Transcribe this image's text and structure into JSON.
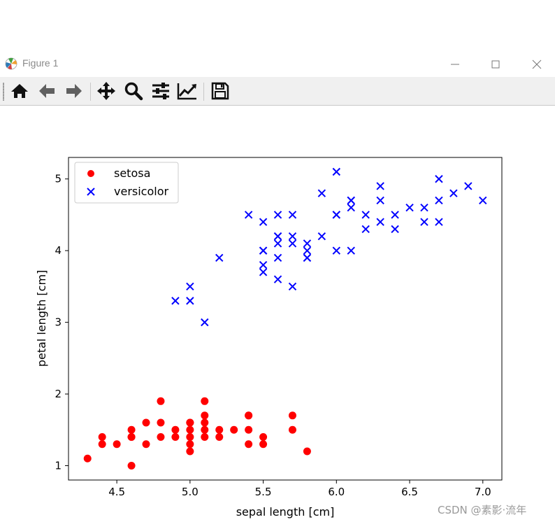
{
  "window": {
    "title": "Figure 1"
  },
  "toolbar": {
    "buttons": [
      "home-icon",
      "back-arrow-icon",
      "forward-arrow-icon",
      "pan-icon",
      "zoom-icon",
      "configure-subplots-icon",
      "edit-axis-icon",
      "save-icon"
    ]
  },
  "chart_data": {
    "type": "scatter",
    "title": "",
    "xlabel": "sepal length [cm]",
    "ylabel": "petal length [cm]",
    "xlim": [
      4.17,
      7.13
    ],
    "ylim": [
      0.8,
      5.3
    ],
    "xticks": [
      "4.5",
      "5.0",
      "5.5",
      "6.0",
      "6.5",
      "7.0"
    ],
    "yticks": [
      "1",
      "2",
      "3",
      "4",
      "5"
    ],
    "legend_position": "upper-left",
    "grid": false,
    "series": [
      {
        "name": "setosa",
        "color": "#ff0000",
        "marker": "circle",
        "x": [
          4.3,
          4.4,
          4.4,
          4.5,
          4.6,
          4.6,
          4.6,
          4.7,
          4.7,
          4.8,
          4.8,
          4.8,
          4.9,
          4.9,
          5.0,
          5.0,
          5.0,
          5.0,
          5.0,
          5.0,
          5.1,
          5.1,
          5.1,
          5.1,
          5.1,
          5.2,
          5.2,
          5.3,
          5.4,
          5.4,
          5.4,
          5.4,
          5.5,
          5.5,
          5.7,
          5.7,
          5.8,
          4.6
        ],
        "y": [
          1.1,
          1.4,
          1.3,
          1.3,
          1.5,
          1.4,
          1.0,
          1.6,
          1.3,
          1.9,
          1.6,
          1.4,
          1.5,
          1.4,
          1.6,
          1.5,
          1.4,
          1.3,
          1.2,
          1.6,
          1.9,
          1.7,
          1.6,
          1.5,
          1.4,
          1.5,
          1.4,
          1.5,
          1.7,
          1.5,
          1.3,
          1.7,
          1.4,
          1.3,
          1.7,
          1.5,
          1.2,
          1.4
        ]
      },
      {
        "name": "versicolor",
        "color": "#0000ff",
        "marker": "x",
        "x": [
          4.9,
          5.0,
          5.0,
          5.1,
          5.2,
          5.4,
          5.5,
          5.5,
          5.5,
          5.5,
          5.5,
          5.6,
          5.6,
          5.6,
          5.6,
          5.6,
          5.6,
          5.7,
          5.7,
          5.7,
          5.7,
          5.8,
          5.8,
          5.8,
          5.8,
          5.9,
          5.9,
          6.0,
          6.0,
          6.0,
          6.0,
          6.1,
          6.1,
          6.1,
          6.1,
          6.2,
          6.2,
          6.3,
          6.3,
          6.3,
          6.4,
          6.4,
          6.5,
          6.6,
          6.6,
          6.7,
          6.7,
          6.7,
          6.8,
          6.9,
          7.0
        ],
        "y": [
          3.3,
          3.5,
          3.3,
          3.0,
          3.9,
          4.5,
          4.4,
          4.0,
          3.8,
          3.7,
          4.0,
          4.5,
          4.2,
          4.1,
          3.9,
          3.6,
          4.2,
          4.5,
          4.2,
          4.1,
          3.5,
          4.1,
          4.0,
          3.9,
          3.9,
          4.8,
          4.2,
          5.1,
          4.5,
          4.0,
          4.5,
          4.7,
          4.6,
          4.0,
          4.7,
          4.5,
          4.3,
          4.9,
          4.7,
          4.4,
          4.5,
          4.3,
          4.6,
          4.6,
          4.4,
          5.0,
          4.7,
          4.4,
          4.8,
          4.9,
          4.7
        ]
      }
    ]
  },
  "watermark": "CSDN @素影·流年"
}
